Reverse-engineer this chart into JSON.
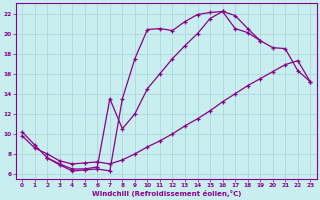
{
  "background_color": "#c8eef0",
  "grid_color": "#b0d8dc",
  "line_color": "#8b008b",
  "xlabel": "Windchill (Refroidissement éolien,°C)",
  "xlim": [
    -0.5,
    23.5
  ],
  "ylim": [
    5.5,
    23.0
  ],
  "yticks": [
    6,
    8,
    10,
    12,
    14,
    16,
    18,
    20,
    22
  ],
  "xticks": [
    0,
    1,
    2,
    3,
    4,
    5,
    6,
    7,
    8,
    9,
    10,
    11,
    12,
    13,
    14,
    15,
    16,
    17,
    18,
    19,
    20,
    21,
    22,
    23
  ],
  "curve1_x": [
    0,
    1,
    2,
    3,
    4,
    5,
    6,
    7,
    8,
    9,
    10,
    11,
    12,
    13,
    14,
    15,
    16,
    17,
    18,
    19
  ],
  "curve1_y": [
    10.2,
    8.9,
    7.6,
    6.9,
    6.3,
    6.4,
    6.5,
    6.3,
    13.5,
    17.5,
    20.4,
    20.5,
    20.3,
    21.2,
    21.9,
    22.1,
    22.2,
    21.8,
    20.5,
    19.3
  ],
  "curve2_x": [
    0,
    1,
    2,
    3,
    4,
    5,
    6,
    7,
    8,
    9,
    10,
    11,
    12,
    13,
    14,
    15,
    16,
    17,
    18,
    19,
    20,
    21,
    22,
    23
  ],
  "curve2_y": [
    9.8,
    8.6,
    8.0,
    7.3,
    7.0,
    7.1,
    7.2,
    7.0,
    7.4,
    8.0,
    8.7,
    9.3,
    10.0,
    10.8,
    11.5,
    12.3,
    13.2,
    14.0,
    14.8,
    15.5,
    16.2,
    16.9,
    17.3,
    15.2
  ],
  "curve3_x": [
    2,
    3,
    4,
    5,
    6,
    7,
    8,
    9,
    10,
    11,
    12,
    13,
    14,
    15,
    16,
    17,
    18,
    19,
    20,
    21,
    22,
    23
  ],
  "curve3_y": [
    7.6,
    7.0,
    6.5,
    6.5,
    6.7,
    13.5,
    10.5,
    12.0,
    14.5,
    16.0,
    17.5,
    18.8,
    20.0,
    21.5,
    22.2,
    20.5,
    20.1,
    19.3,
    18.6,
    18.5,
    16.3,
    15.2
  ]
}
